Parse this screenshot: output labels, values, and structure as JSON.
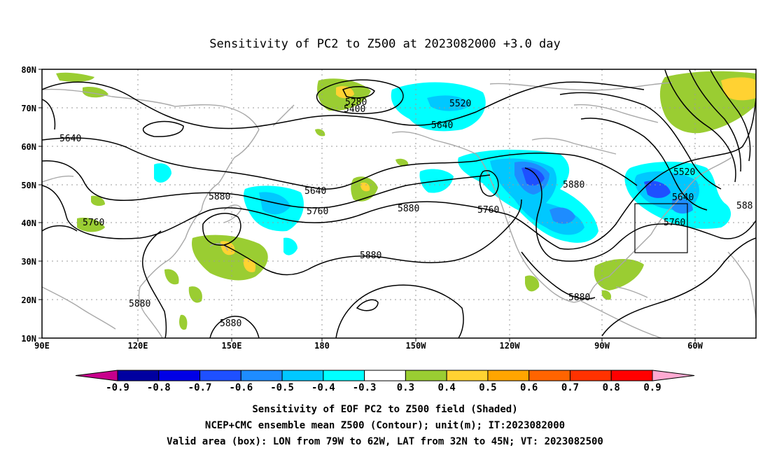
{
  "title": "Sensitivity of PC2 to Z500 at 2023082000 +3.0 day",
  "map": {
    "lat_labels": [
      "80N",
      "70N",
      "60N",
      "50N",
      "40N",
      "30N",
      "20N",
      "10N"
    ],
    "lon_labels": [
      "90E",
      "120E",
      "150E",
      "180",
      "150W",
      "120W",
      "90W",
      "60W"
    ],
    "valid_box": {
      "lon_west": "79W",
      "lon_east": "62W",
      "lat_south": "32N",
      "lat_north": "45N"
    }
  },
  "contour_labels": {
    "c5280": "5280",
    "c5400": "5400",
    "c5520a": "5520",
    "c5640a": "5640",
    "c5640b": "5640",
    "c5640c": "5640",
    "c5760a": "5760",
    "c5760b": "5760",
    "c5760c": "5760",
    "c5880a": "5880",
    "c5880b": "5880",
    "c5880c": "5880",
    "c5880d": "5880",
    "c5880e": "5880",
    "c5880f": "5880",
    "c5880g": "5880",
    "c5520b": "5520",
    "c5640d": "5640",
    "c5760d": "5760",
    "c588edge": "588"
  },
  "colorbar": {
    "labels": [
      "-0.9",
      "-0.8",
      "-0.7",
      "-0.6",
      "-0.5",
      "-0.4",
      "-0.3",
      "0.3",
      "0.4",
      "0.5",
      "0.6",
      "0.7",
      "0.8",
      "0.9"
    ],
    "colors": [
      "#c8008c",
      "#0000a0",
      "#0000e6",
      "#1e50ff",
      "#1e8cff",
      "#00c8ff",
      "#00ffff",
      "#ffffff",
      "#9acd32",
      "#ffd232",
      "#ffa500",
      "#ff6400",
      "#ff3200",
      "#ff0000",
      "#ffaad2"
    ]
  },
  "captions": {
    "line1": "Sensitivity of EOF PC2 to Z500 field (Shaded)",
    "line2": "NCEP+CMC ensemble mean Z500 (Contour); unit(m); IT:2023082000",
    "line3": "Valid area (box): LON from 79W to 62W, LAT from 32N to 45N; VT: 2023082500"
  }
}
